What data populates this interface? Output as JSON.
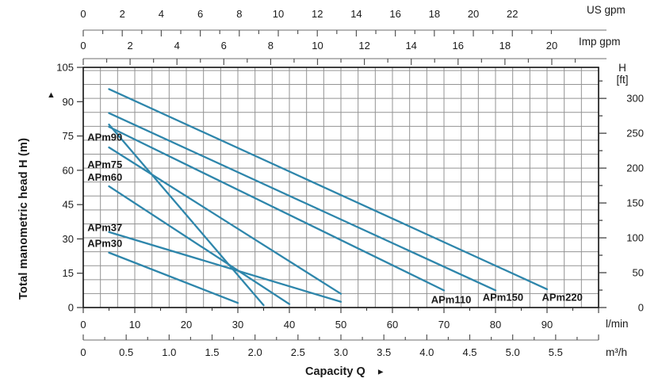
{
  "chart_data": {
    "type": "line",
    "xlabel": "Capacity Q",
    "line_color": "#2e86ab",
    "grid": {
      "v_step_m3h": 0.2,
      "h_step_ft": 20,
      "color": "#939393",
      "border_color": "#111111"
    },
    "x_axes": {
      "lmin": {
        "unit": "l/min",
        "tick_labels": [
          0,
          10,
          20,
          30,
          40,
          50,
          60,
          70,
          80,
          90
        ],
        "major_step": 10,
        "minor_step": 5,
        "range": [
          0,
          100
        ]
      },
      "m3h": {
        "unit": "m³/h",
        "tick_labels": [
          "0",
          "0.5",
          "1.0",
          "1.5",
          "2.0",
          "2.5",
          "3.0",
          "3.5",
          "4.0",
          "4.5",
          "5.0",
          "5.5"
        ],
        "major_step": 0.5,
        "minor_step": 0.25,
        "minor_max": 6.0,
        "lmin_per_unit": 16.667
      },
      "us_gpm": {
        "unit": "US gpm",
        "tick_labels": [
          0,
          2,
          4,
          6,
          8,
          10,
          12,
          14,
          16,
          18,
          20,
          22
        ],
        "major_step": 2,
        "minor_step": 1,
        "minor_max": 24,
        "lmin_per_unit": 3.785
      },
      "imp_gpm": {
        "unit": "Imp gpm",
        "tick_labels": [
          0,
          2,
          4,
          6,
          8,
          10,
          12,
          14,
          16,
          18,
          20
        ],
        "major_step": 2,
        "minor_step": 1,
        "minor_max": 21,
        "lmin_per_unit": 4.546
      }
    },
    "y_axes": {
      "m": {
        "label": "Total manometric head H (m)",
        "tick_labels": [
          0,
          15,
          30,
          45,
          60,
          75,
          90,
          105
        ],
        "range": [
          0,
          105
        ]
      },
      "ft": {
        "unit_line1": "H",
        "unit_line2": "[ft]",
        "tick_labels": [
          0,
          50,
          100,
          150,
          200,
          250,
          300
        ],
        "major_step": 50,
        "minor_step": 25,
        "minor_max": 325,
        "m_per_unit": 0.3048
      }
    },
    "series": [
      {
        "name": "APm30",
        "points": [
          [
            5,
            24
          ],
          [
            30,
            2
          ]
        ],
        "label_at": [
          0.8,
          26.5
        ],
        "label_align": "start"
      },
      {
        "name": "APm37",
        "points": [
          [
            5,
            33
          ],
          [
            50,
            2.5
          ]
        ],
        "label_at": [
          0.8,
          33.5
        ],
        "label_align": "start"
      },
      {
        "name": "APm60",
        "points": [
          [
            5,
            53
          ],
          [
            40,
            1.5
          ]
        ],
        "label_at": [
          0.8,
          55.5
        ],
        "label_align": "start"
      },
      {
        "name": "APm75",
        "points": [
          [
            5,
            70
          ],
          [
            50,
            6
          ]
        ],
        "label_at": [
          0.8,
          61
        ],
        "label_align": "start"
      },
      {
        "name": "APm90",
        "points": [
          [
            5,
            80
          ],
          [
            35,
            1
          ]
        ],
        "label_at": [
          0.8,
          73
        ],
        "label_align": "start"
      },
      {
        "name": "APm110",
        "points": [
          [
            5,
            79
          ],
          [
            70,
            7.5
          ]
        ],
        "label_at": [
          67.5,
          1.9
        ],
        "label_align": "start"
      },
      {
        "name": "APm150",
        "points": [
          [
            5,
            85
          ],
          [
            80,
            7.5
          ]
        ],
        "label_at": [
          77.5,
          2.9
        ],
        "label_align": "start"
      },
      {
        "name": "APm220",
        "points": [
          [
            5,
            95.5
          ],
          [
            90,
            8
          ]
        ],
        "label_at": [
          89,
          2.9
        ],
        "label_align": "start"
      }
    ],
    "head_axis_arrow": "▲",
    "capacity_arrow": "►"
  }
}
